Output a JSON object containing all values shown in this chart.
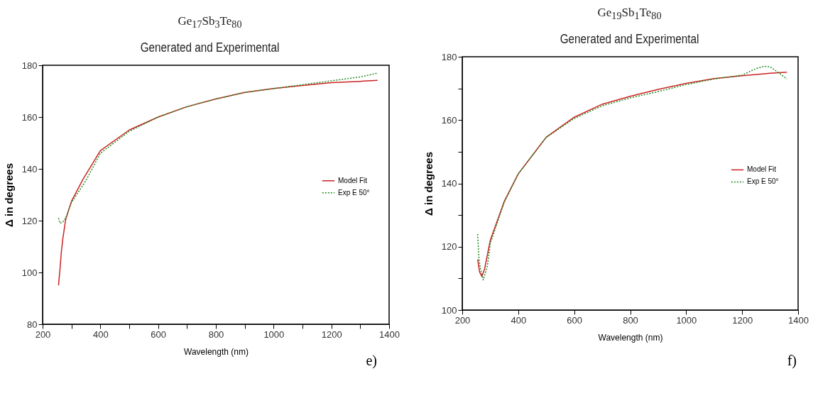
{
  "chart_data": [
    {
      "type": "line",
      "title": "Ge$_{17}$Sb$_{3}$Te$_{80}$",
      "subtitle": "Generated and Experimental",
      "xlabel": "Wavelength (nm)",
      "ylabel": "Δ in degrees",
      "annotations": [
        "e)"
      ],
      "xlim": [
        200,
        1400
      ],
      "ylim": [
        80,
        180
      ],
      "xticks": [
        200,
        {
          "value": 300,
          "label": null
        },
        400,
        {
          "value": 500,
          "label": null
        },
        600,
        {
          "value": 700,
          "label": null
        },
        800,
        {
          "value": 900,
          "label": null
        },
        1000,
        {
          "value": 1100,
          "label": null
        },
        1200,
        {
          "value": 1300,
          "label": null
        },
        1400
      ],
      "yticks": [
        80,
        100,
        120,
        140,
        160,
        180
      ],
      "grid": false,
      "legend": "right",
      "series": [
        {
          "name": "Model Fit",
          "color": "#cc2222",
          "line_style": "solid",
          "x": [
            255,
            260,
            265,
            270,
            280,
            300,
            340,
            400,
            500,
            600,
            700,
            800,
            900,
            1000,
            1100,
            1200,
            1300,
            1360
          ],
          "values": [
            95,
            101,
            108,
            113,
            120.5,
            127.5,
            136,
            147,
            155,
            160,
            164,
            167,
            169.5,
            171,
            172.2,
            173.3,
            173.8,
            174.2
          ]
        },
        {
          "name": "Exp E 50°",
          "color": "#228b22",
          "line_style": "dotted",
          "x": [
            255,
            260,
            270,
            280,
            300,
            350,
            400,
            500,
            600,
            700,
            800,
            900,
            1000,
            1100,
            1200,
            1300,
            1360
          ],
          "values": [
            121,
            119,
            119.5,
            121,
            127,
            135.5,
            146,
            154.5,
            160,
            164,
            167,
            169.5,
            171,
            172.5,
            174,
            175.5,
            177
          ]
        }
      ]
    },
    {
      "type": "line",
      "title": "Ge$_{19}$Sb$_{1}$Te$_{80}$",
      "subtitle": "Generated and Experimental",
      "xlabel": "Wavelength (nm)",
      "ylabel": "Δ in degrees",
      "annotations": [
        "f)"
      ],
      "xlim": [
        200,
        1400
      ],
      "ylim": [
        100,
        180
      ],
      "xticks": [
        200,
        400,
        600,
        800,
        1000,
        1200,
        1400
      ],
      "yticks": [
        100,
        {
          "value": 110,
          "label": null
        },
        120,
        {
          "value": 130,
          "label": null
        },
        140,
        {
          "value": 150,
          "label": null
        },
        160,
        {
          "value": 170,
          "label": null
        },
        180
      ],
      "grid": false,
      "legend": "right",
      "series": [
        {
          "name": "Model Fit",
          "color": "#cc2222",
          "line_style": "solid",
          "x": [
            255,
            262,
            270,
            280,
            300,
            350,
            400,
            500,
            600,
            700,
            800,
            900,
            1000,
            1100,
            1200,
            1300,
            1360
          ],
          "values": [
            116,
            112,
            110.6,
            113,
            122,
            134.3,
            143,
            154.6,
            160.9,
            165,
            167.5,
            169.7,
            171.6,
            173.1,
            174,
            174.8,
            175.1
          ]
        },
        {
          "name": "Exp E 50°",
          "color": "#228b22",
          "line_style": "dotted",
          "x": [
            255,
            260,
            265,
            275,
            290,
            300,
            350,
            400,
            500,
            600,
            700,
            800,
            900,
            1000,
            1100,
            1200,
            1250,
            1280,
            1300,
            1330,
            1360
          ],
          "values": [
            124,
            116,
            113,
            109.5,
            114,
            121,
            134,
            143,
            154.5,
            160.5,
            164.5,
            167,
            169,
            171.2,
            173,
            174.2,
            176.3,
            177,
            176.8,
            175,
            173
          ]
        }
      ]
    }
  ]
}
